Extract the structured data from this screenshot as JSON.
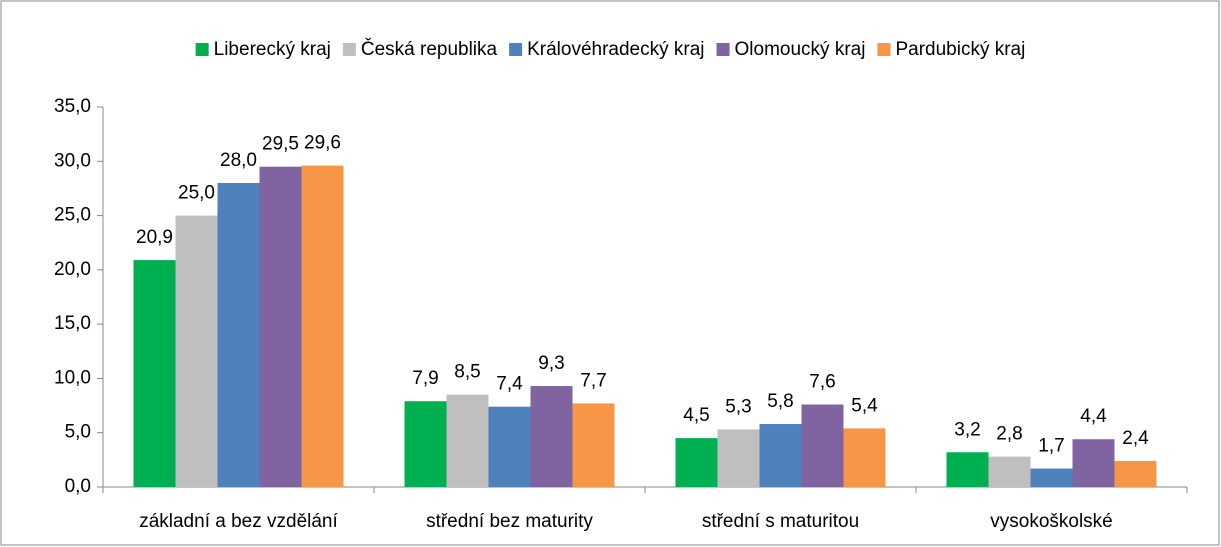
{
  "chart_data": {
    "type": "bar",
    "categories": [
      "základní a bez vzdělání",
      "střední bez maturity",
      "střední s maturitou",
      "vysokoškolské"
    ],
    "series": [
      {
        "name": "Liberecký kraj",
        "color": "#00b050",
        "values": [
          20.9,
          7.9,
          4.5,
          3.2
        ],
        "value_labels": [
          "20,9",
          "7,9",
          "4,5",
          "3,2"
        ]
      },
      {
        "name": "Česká republika",
        "color": "#bfbfbf",
        "values": [
          25.0,
          8.5,
          5.3,
          2.8
        ],
        "value_labels": [
          "25,0",
          "8,5",
          "5,3",
          "2,8"
        ]
      },
      {
        "name": "Královéhradecký kraj",
        "color": "#4f81bd",
        "values": [
          28.0,
          7.4,
          5.8,
          1.7
        ],
        "value_labels": [
          "28,0",
          "7,4",
          "5,8",
          "1,7"
        ]
      },
      {
        "name": "Olomoucký kraj",
        "color": "#8064a2",
        "values": [
          29.5,
          9.3,
          7.6,
          4.4
        ],
        "value_labels": [
          "29,5",
          "9,3",
          "7,6",
          "4,4"
        ]
      },
      {
        "name": "Pardubický kraj",
        "color": "#f79646",
        "values": [
          29.6,
          7.7,
          5.4,
          2.4
        ],
        "value_labels": [
          "29,6",
          "7,7",
          "5,4",
          "2,4"
        ]
      }
    ],
    "ylim": [
      0,
      35
    ],
    "yticks": [
      {
        "value": 0,
        "label": "0,0"
      },
      {
        "value": 5,
        "label": "5,0"
      },
      {
        "value": 10,
        "label": "10,0"
      },
      {
        "value": 15,
        "label": "15,0"
      },
      {
        "value": 20,
        "label": "20,0"
      },
      {
        "value": 25,
        "label": "25,0"
      },
      {
        "value": 30,
        "label": "30,0"
      },
      {
        "value": 35,
        "label": "35,0"
      }
    ],
    "legend": "top"
  }
}
